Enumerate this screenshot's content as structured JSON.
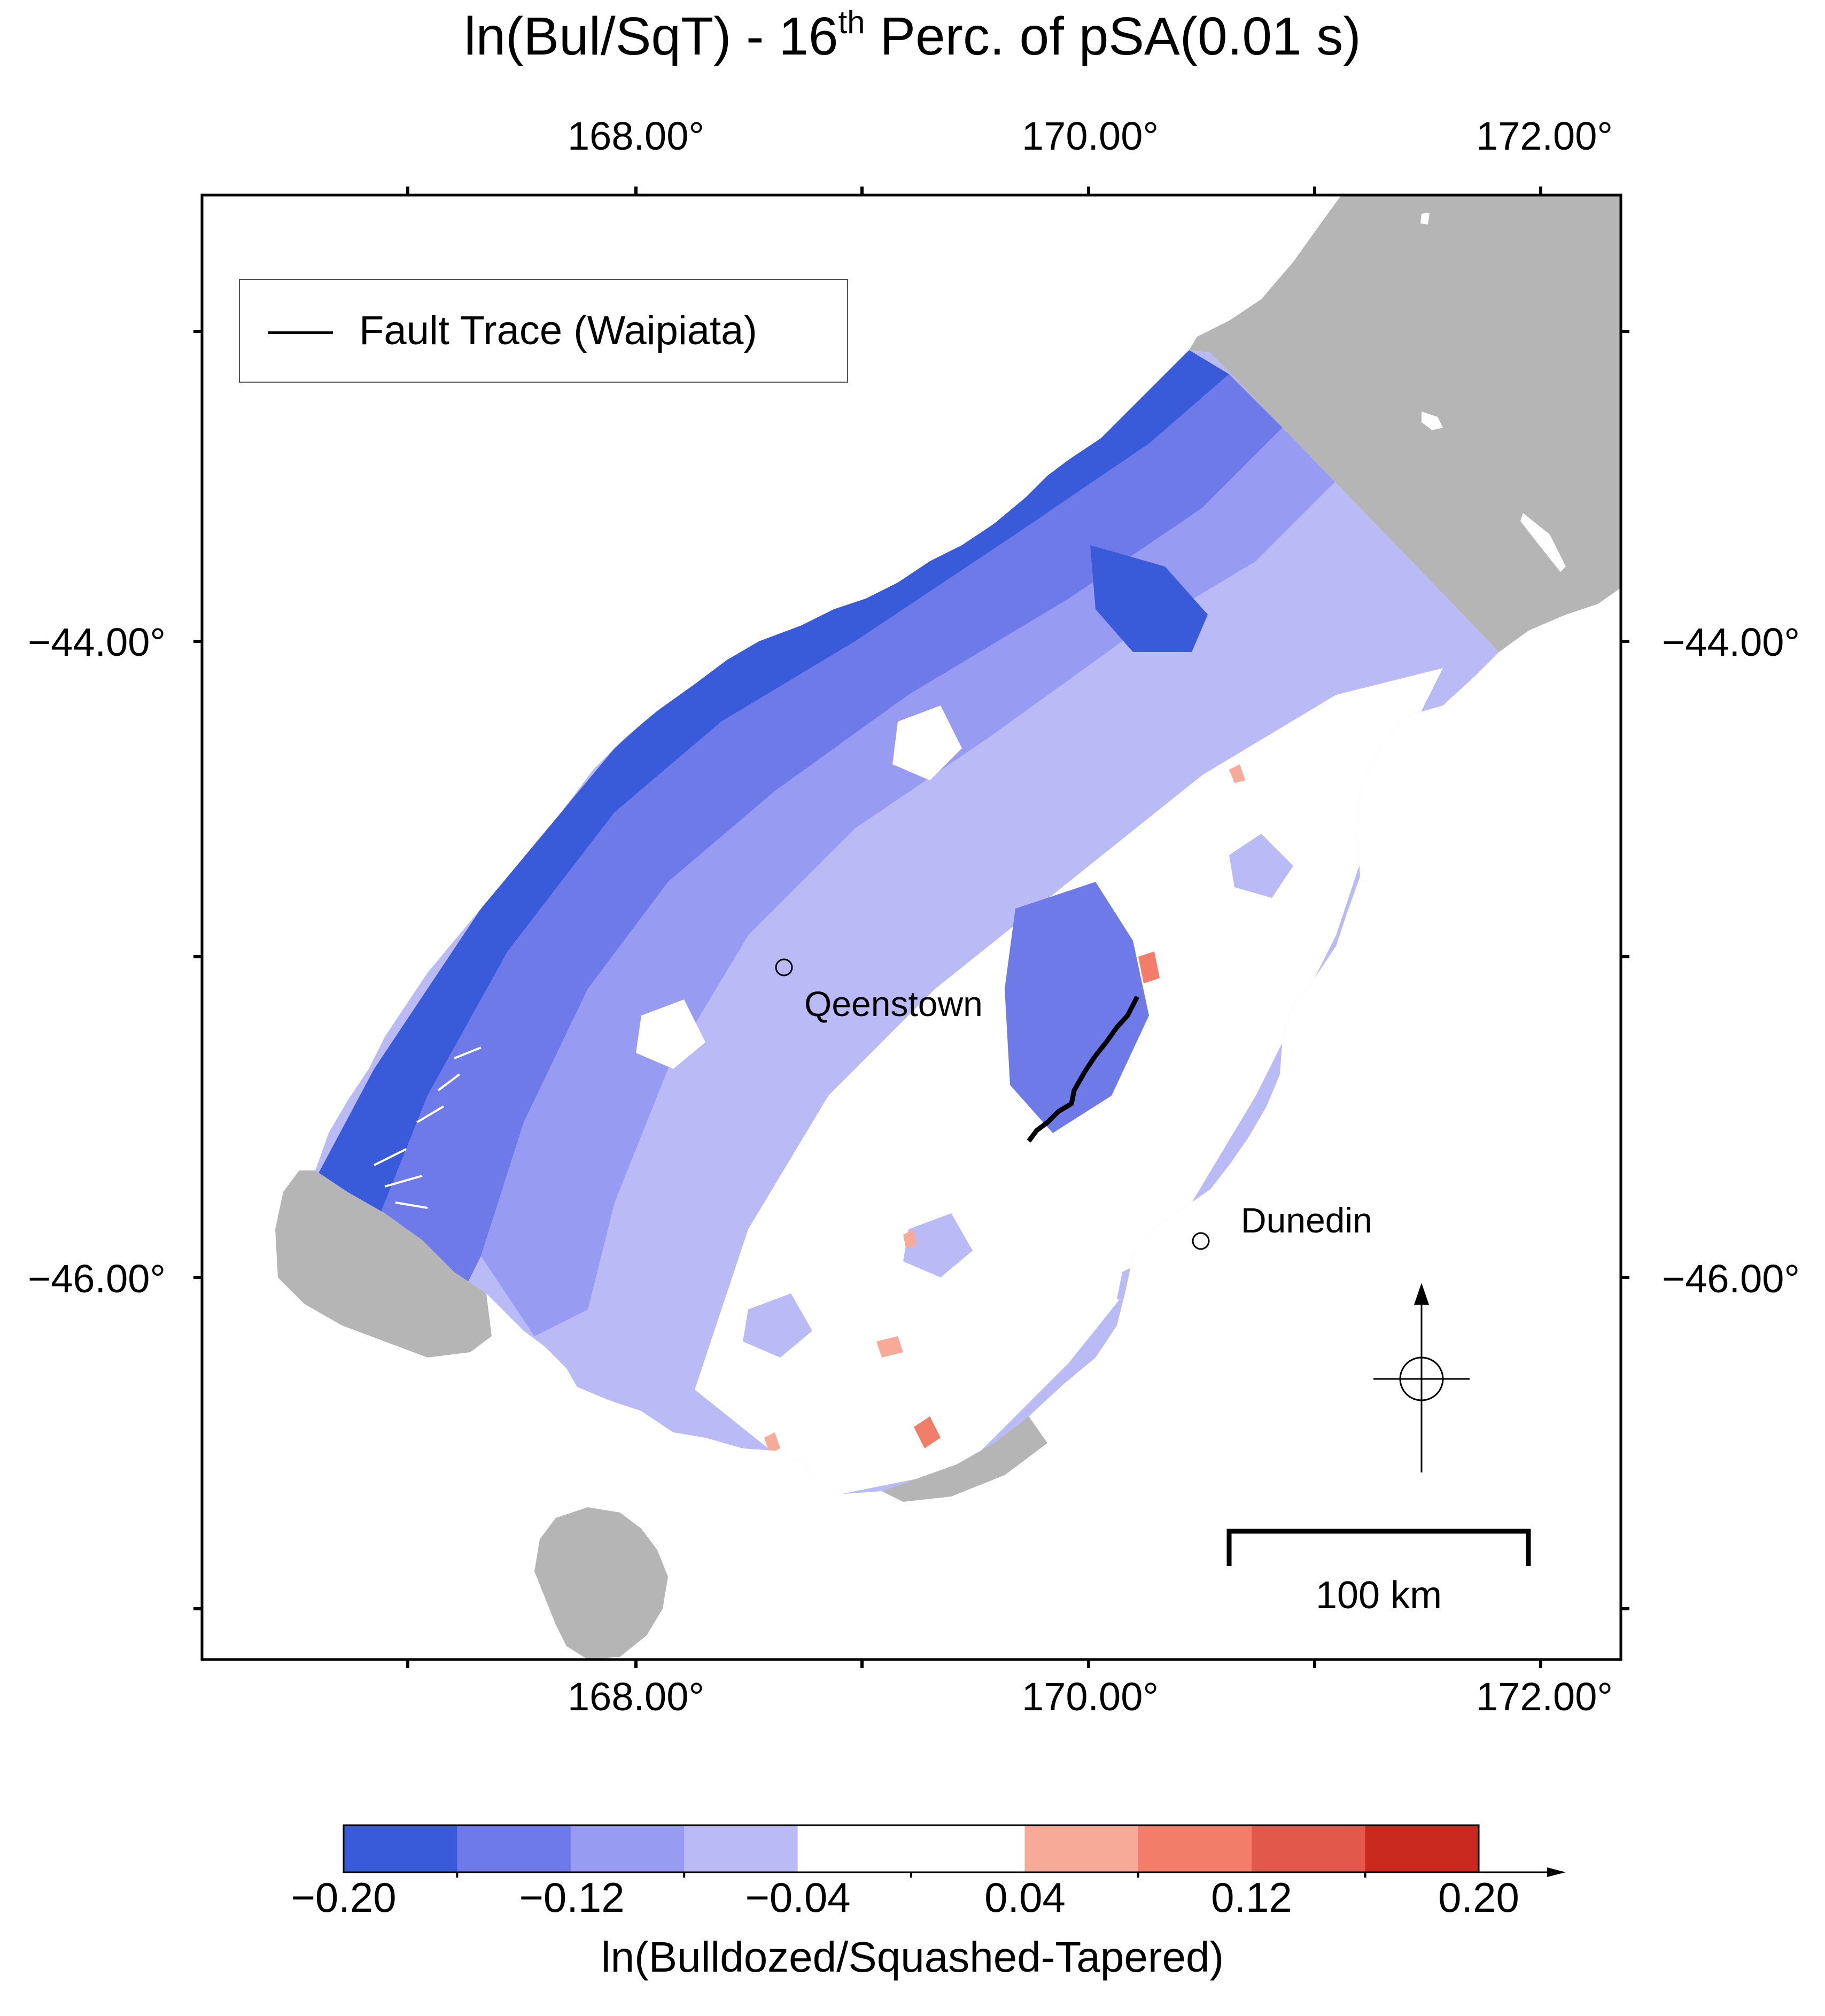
{
  "title": {
    "main": "ln(Bul/SqT)  - 16",
    "superscript": "th",
    "rest": " Perc. of pSA(0.01 s)"
  },
  "axes": {
    "lon_ticks": [
      "168.00°",
      "170.00°",
      "172.00°"
    ],
    "lat_ticks": [
      "−44.00°",
      "−46.00°"
    ]
  },
  "legend": {
    "entry": "Fault Trace (Waipiata)"
  },
  "cities": [
    {
      "name": "Qeenstown"
    },
    {
      "name": "Dunedin"
    }
  ],
  "scale_bar": {
    "label": "100 km"
  },
  "colorbar": {
    "title": "ln(Bulldozed/Squashed-Tapered)",
    "tick_labels": [
      "−0.20",
      "−0.12",
      "−0.04",
      "0.04",
      "0.12",
      "0.20"
    ],
    "colors": [
      "#3a5bd9",
      "#6e7ae8",
      "#979bf1",
      "#babaf6",
      "#ffffff",
      "#ffffff",
      "#f8aa98",
      "#f27e6a",
      "#e2584a",
      "#c8281e"
    ]
  },
  "map_colors": {
    "land": "#b5b5b5",
    "deep_blue": "#3a5bd9",
    "mid_blue": "#6e7ae8",
    "light_blue": "#979bf1",
    "pale_blue": "#babaf6",
    "salmon": "#f27e6a"
  }
}
